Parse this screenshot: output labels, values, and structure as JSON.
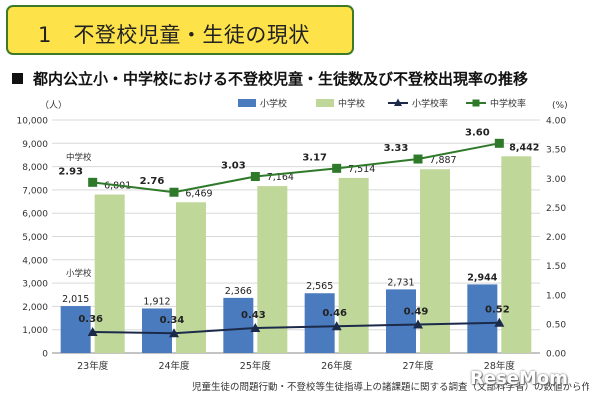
{
  "banner": {
    "text": "1　不登校児童・生徒の現状"
  },
  "subtitle": {
    "text": "都内公立小・中学校における不登校児童・生徒数及び不登校出現率の推移"
  },
  "source": "児童生徒の問題行動・不登校等生徒指導上の諸課題に関する調査（文部科学省）の数値から作成",
  "logo": "ReseMom",
  "colors": {
    "elementary_bar": "#4b7bbf",
    "junior_bar": "#bfd89a",
    "elementary_rate_line": "#1c2a4a",
    "junior_rate_line": "#2f7a2a",
    "banner_fill": "#fde24a",
    "banner_border": "#3d7a28"
  },
  "chart_data": {
    "type": "bar+line",
    "categories": [
      "23年度",
      "24年度",
      "25年度",
      "26年度",
      "27年度",
      "28年度"
    ],
    "series": [
      {
        "name": "小学校",
        "type": "bar",
        "axis": "left",
        "values": [
          2015,
          1912,
          2366,
          2565,
          2731,
          2944
        ],
        "labels": [
          "2,015",
          "1,912",
          "2,366",
          "2,565",
          "2,731",
          "2,944"
        ]
      },
      {
        "name": "中学校",
        "type": "bar",
        "axis": "left",
        "values": [
          6801,
          6469,
          7164,
          7514,
          7887,
          8442
        ],
        "labels": [
          "6,801",
          "6,469",
          "7,164",
          "7,514",
          "7,887",
          "8,442"
        ]
      },
      {
        "name": "小学校率",
        "type": "line",
        "axis": "right",
        "marker": "triangle",
        "values": [
          0.36,
          0.34,
          0.43,
          0.46,
          0.49,
          0.52
        ],
        "labels": [
          "0.36",
          "0.34",
          "0.43",
          "0.46",
          "0.49",
          "0.52"
        ]
      },
      {
        "name": "中学校率",
        "type": "line",
        "axis": "right",
        "marker": "square",
        "values": [
          2.93,
          2.76,
          3.03,
          3.17,
          3.33,
          3.6
        ],
        "labels": [
          "2.93",
          "2.76",
          "3.03",
          "3.17",
          "3.33",
          "3.60"
        ]
      }
    ],
    "left_axis": {
      "unit": "（人）",
      "ylim": [
        0,
        10000
      ],
      "ticks": [
        "0",
        "1,000",
        "2,000",
        "3,000",
        "4,000",
        "5,000",
        "6,000",
        "7,000",
        "8,000",
        "9,000",
        "10,000"
      ]
    },
    "right_axis": {
      "unit": "(%)",
      "ylim": [
        0,
        4.0
      ],
      "ticks": [
        "0.00",
        "0.50",
        "1.00",
        "1.50",
        "2.00",
        "2.50",
        "3.00",
        "3.50",
        "4.00"
      ]
    },
    "annotations": [
      {
        "text": "中学校",
        "near": "junior rate line"
      },
      {
        "text": "小学校",
        "near": "elementary bars"
      }
    ],
    "grid": true,
    "legend_position": "top"
  }
}
